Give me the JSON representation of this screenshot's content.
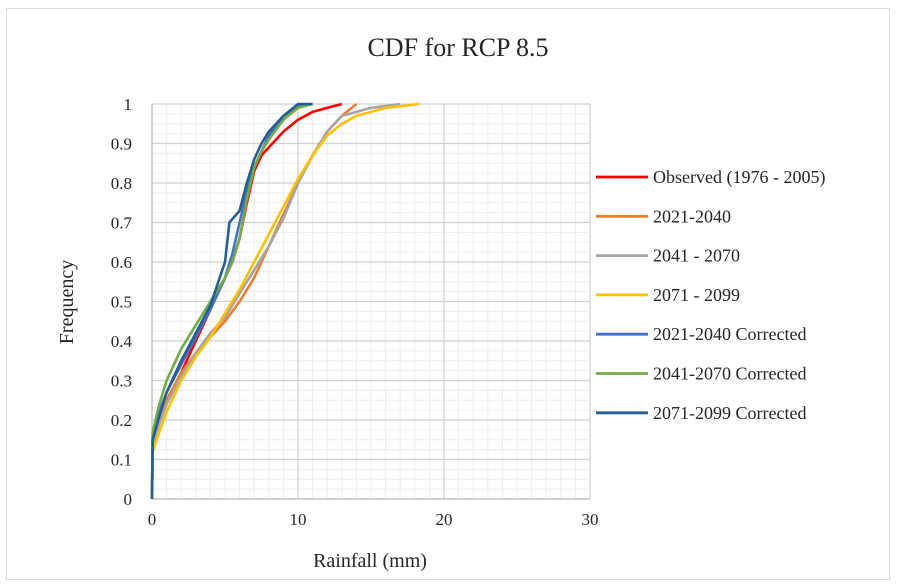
{
  "chart_data": {
    "type": "line",
    "title": "CDF for RCP 8.5",
    "xlabel": "Rainfall (mm)",
    "ylabel": "Frequency",
    "xlim": [
      0,
      30
    ],
    "ylim": [
      0,
      1
    ],
    "x_ticks": [
      "0",
      "10",
      "20",
      "30"
    ],
    "y_ticks": [
      "0",
      "0.1",
      "0.2",
      "0.3",
      "0.4",
      "0.5",
      "0.6",
      "0.7",
      "0.8",
      "0.9",
      "1"
    ],
    "grid": true,
    "legend_position": "right",
    "series": [
      {
        "name": "Observed (1976 - 2005)",
        "color": "#ff0000",
        "points": [
          [
            0,
            0
          ],
          [
            0.05,
            0.15
          ],
          [
            0.5,
            0.2
          ],
          [
            1,
            0.25
          ],
          [
            2,
            0.32
          ],
          [
            3,
            0.4
          ],
          [
            4,
            0.48
          ],
          [
            5,
            0.56
          ],
          [
            5.5,
            0.6
          ],
          [
            6,
            0.66
          ],
          [
            6.5,
            0.75
          ],
          [
            7,
            0.83
          ],
          [
            7.5,
            0.87
          ],
          [
            8,
            0.89
          ],
          [
            9,
            0.93
          ],
          [
            10,
            0.96
          ],
          [
            11,
            0.98
          ],
          [
            12,
            0.99
          ],
          [
            13,
            1.0
          ]
        ]
      },
      {
        "name": "2021-2040",
        "color": "#ed7d31",
        "points": [
          [
            0,
            0
          ],
          [
            0.05,
            0.14
          ],
          [
            0.5,
            0.2
          ],
          [
            1,
            0.25
          ],
          [
            2,
            0.32
          ],
          [
            3,
            0.37
          ],
          [
            4,
            0.41
          ],
          [
            5,
            0.45
          ],
          [
            6,
            0.5
          ],
          [
            7,
            0.56
          ],
          [
            8,
            0.64
          ],
          [
            9,
            0.72
          ],
          [
            10,
            0.8
          ],
          [
            11,
            0.87
          ],
          [
            12,
            0.93
          ],
          [
            13,
            0.97
          ],
          [
            14,
            1.0
          ]
        ]
      },
      {
        "name": "2041 - 2070",
        "color": "#a5a5a5",
        "points": [
          [
            0,
            0
          ],
          [
            0.05,
            0.14
          ],
          [
            0.5,
            0.19
          ],
          [
            1,
            0.24
          ],
          [
            2,
            0.31
          ],
          [
            3,
            0.37
          ],
          [
            4,
            0.42
          ],
          [
            5,
            0.46
          ],
          [
            6,
            0.52
          ],
          [
            7,
            0.58
          ],
          [
            8,
            0.64
          ],
          [
            9,
            0.71
          ],
          [
            10,
            0.8
          ],
          [
            11,
            0.87
          ],
          [
            12,
            0.93
          ],
          [
            13,
            0.97
          ],
          [
            15,
            0.99
          ],
          [
            17,
            1.0
          ]
        ]
      },
      {
        "name": "2071 - 2099",
        "color": "#ffc000",
        "points": [
          [
            0,
            0
          ],
          [
            0.05,
            0.12
          ],
          [
            0.5,
            0.17
          ],
          [
            1,
            0.22
          ],
          [
            2,
            0.3
          ],
          [
            3,
            0.36
          ],
          [
            4,
            0.41
          ],
          [
            5,
            0.47
          ],
          [
            6,
            0.53
          ],
          [
            7,
            0.6
          ],
          [
            8,
            0.67
          ],
          [
            9,
            0.74
          ],
          [
            10,
            0.81
          ],
          [
            11,
            0.87
          ],
          [
            12,
            0.92
          ],
          [
            13,
            0.95
          ],
          [
            14,
            0.97
          ],
          [
            15,
            0.98
          ],
          [
            16,
            0.99
          ],
          [
            18.3,
            1.0
          ]
        ]
      },
      {
        "name": "2021-2040 Corrected",
        "color": "#4472c4",
        "points": [
          [
            0,
            0
          ],
          [
            0.05,
            0.16
          ],
          [
            0.5,
            0.22
          ],
          [
            1,
            0.27
          ],
          [
            2,
            0.34
          ],
          [
            3,
            0.41
          ],
          [
            4,
            0.48
          ],
          [
            5,
            0.56
          ],
          [
            5.5,
            0.62
          ],
          [
            6,
            0.7
          ],
          [
            6.5,
            0.78
          ],
          [
            7,
            0.84
          ],
          [
            7.5,
            0.88
          ],
          [
            8,
            0.92
          ],
          [
            9,
            0.97
          ],
          [
            10,
            0.995
          ],
          [
            11,
            1.0
          ]
        ]
      },
      {
        "name": "2041-2070 Corrected",
        "color": "#70ad47",
        "points": [
          [
            0,
            0
          ],
          [
            0.05,
            0.17
          ],
          [
            0.5,
            0.24
          ],
          [
            1,
            0.3
          ],
          [
            2,
            0.38
          ],
          [
            3,
            0.44
          ],
          [
            4,
            0.5
          ],
          [
            5,
            0.56
          ],
          [
            5.5,
            0.6
          ],
          [
            6,
            0.66
          ],
          [
            6.5,
            0.76
          ],
          [
            7,
            0.84
          ],
          [
            7.5,
            0.88
          ],
          [
            8,
            0.91
          ],
          [
            9,
            0.96
          ],
          [
            10,
            0.99
          ],
          [
            11,
            1.0
          ]
        ]
      },
      {
        "name": "2071-2099 Corrected",
        "color": "#255e91",
        "points": [
          [
            0,
            0
          ],
          [
            0.05,
            0.15
          ],
          [
            0.5,
            0.21
          ],
          [
            1,
            0.27
          ],
          [
            2,
            0.35
          ],
          [
            3,
            0.42
          ],
          [
            4,
            0.49
          ],
          [
            5,
            0.6
          ],
          [
            5.3,
            0.7
          ],
          [
            6,
            0.73
          ],
          [
            6.5,
            0.8
          ],
          [
            7,
            0.86
          ],
          [
            7.5,
            0.9
          ],
          [
            8,
            0.93
          ],
          [
            9,
            0.97
          ],
          [
            10,
            1.0
          ],
          [
            11,
            1.0
          ]
        ]
      }
    ]
  }
}
